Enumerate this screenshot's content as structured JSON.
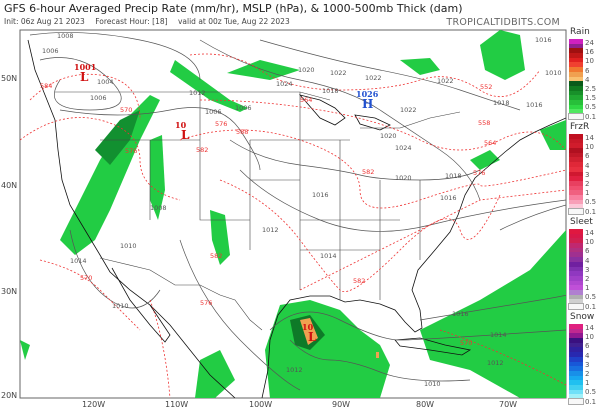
{
  "header": {
    "title": "GFS 6-hour Averaged Precip Rate (mm/hr), MSLP (hPa), & 1000-500mb Thick (dam)",
    "init": "Init: 06z Aug 21 2023",
    "forecast_hour": "Forecast Hour: [18]",
    "valid": "valid at 00z Tue, Aug 22 2023",
    "brand": "TROPICALTIDBITS.COM"
  },
  "axes": {
    "lat_labels": [
      "50N",
      "40N",
      "30N",
      "20N"
    ],
    "lon_labels": [
      "120W",
      "110W",
      "100W",
      "90W",
      "80W",
      "70W"
    ]
  },
  "centers": [
    {
      "type": "L",
      "value": "1001",
      "color": "#d01010"
    },
    {
      "type": "L",
      "value": "10",
      "color": "#d01010"
    },
    {
      "type": "H",
      "value": "1026",
      "color": "#2050d0"
    },
    {
      "type": "L",
      "value": "10",
      "color": "#d01010"
    }
  ],
  "isobar_labels": [
    "1008",
    "1006",
    "1004",
    "1006",
    "1012",
    "1006",
    "1006",
    "1022",
    "1020",
    "1018",
    "1024",
    "1022",
    "1022",
    "1024",
    "1022",
    "1018",
    "1016",
    "1020",
    "1020",
    "1018",
    "1016",
    "1016",
    "1012",
    "1014",
    "1010",
    "1014",
    "1010",
    "1016",
    "1014",
    "1012",
    "1012",
    "1010",
    "1008",
    "1016",
    "1010"
  ],
  "thickness_labels": [
    "584",
    "570",
    "576",
    "582",
    "588",
    "576",
    "564",
    "552",
    "558",
    "564",
    "576",
    "582",
    "570",
    "582",
    "582",
    "570",
    "576"
  ],
  "legend": {
    "rain": {
      "title": "Rain",
      "labels": [
        "24",
        "16",
        "10",
        "6",
        "4",
        "2.5",
        "1.5",
        "0.5",
        "0.1"
      ],
      "colors": [
        "#d020c0",
        "#902090",
        "#a01010",
        "#c01818",
        "#e02020",
        "#f04030",
        "#f07830",
        "#f0a050",
        "#f8c070",
        "#0a5a1a",
        "#107a20",
        "#18902a",
        "#20a832",
        "#28c03a",
        "#30d844",
        "#50e860",
        "#f8f8f8"
      ]
    },
    "frzr": {
      "title": "FrzR",
      "labels": [
        "14",
        "10",
        "6",
        "4",
        "3",
        "2",
        "1",
        "0.5",
        "0.1"
      ],
      "colors": [
        "#c01020",
        "#c81828",
        "#d01c2c",
        "#b01020",
        "#c01828",
        "#d02030",
        "#e02838",
        "#e83040",
        "#d01830",
        "#e02040",
        "#e84060",
        "#f05070",
        "#f06080",
        "#f880a0",
        "#f8a0b8",
        "#fcc8d8",
        "#f8f8f8"
      ]
    },
    "sleet": {
      "title": "Sleet",
      "labels": [
        "14",
        "10",
        "6",
        "4",
        "3",
        "2",
        "1",
        "0.5",
        "0.1"
      ],
      "colors": [
        "#e01840",
        "#d81848",
        "#d02050",
        "#c02870",
        "#b03080",
        "#a03090",
        "#8a30a0",
        "#7020a0",
        "#8030b0",
        "#9038c0",
        "#a040c8",
        "#b048d0",
        "#c050d8",
        "#b080d0",
        "#b0b0b0",
        "#d0d0d0",
        "#f8f8f8"
      ]
    },
    "snow": {
      "title": "Snow",
      "labels": [
        "14",
        "10",
        "6",
        "4",
        "3",
        "2",
        "1",
        "0.5",
        "0.1"
      ],
      "colors": [
        "#e02080",
        "#c02890",
        "#901890",
        "#3a1080",
        "#402090",
        "#3020a0",
        "#2828b0",
        "#2040c8",
        "#1858d8",
        "#1870e0",
        "#1890e8",
        "#18a8f0",
        "#20c0f0",
        "#40d0f0",
        "#70e0f8",
        "#a0f0f8",
        "#f8f8f8"
      ]
    }
  }
}
